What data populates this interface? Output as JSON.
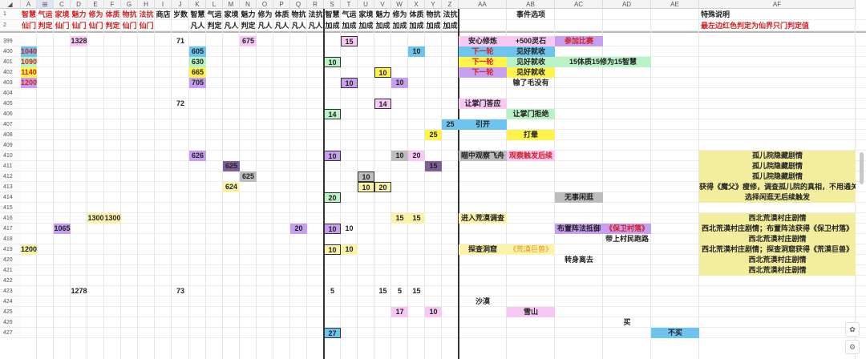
{
  "colors": {
    "pink": "#f7c8f4",
    "red_fill": "#f3a6a6",
    "yellow": "#fff24b",
    "orange": "#ffbf2e",
    "green": "#b9f2c6",
    "blue": "#6cc4ef",
    "purple": "#c79ff0",
    "gray": "#bdbdbd",
    "dark_purple": "#7f5f95",
    "light_yellow": "#fbf3a9",
    "khaki": "#f2ee9e",
    "red_text": "#d32020",
    "orange_text": "#e8901a"
  },
  "ui": {
    "select_all": "◢",
    "cursor_icon": "⊞",
    "copilot_icon": "✿",
    "settings_icon": "⚙"
  },
  "columns": [
    "A",
    "B",
    "C",
    "D",
    "E",
    "F",
    "G",
    "H",
    "I",
    "J",
    "K",
    "L",
    "M",
    "N",
    "O",
    "P",
    "Q",
    "R",
    "S",
    "T",
    "U",
    "V",
    "W",
    "X",
    "Y",
    "Z",
    "AA",
    "AB",
    "AC",
    "AD",
    "AE",
    "AF"
  ],
  "row_numbers": [
    "1",
    "2",
    "399",
    "400",
    "401",
    "402",
    "403",
    "404",
    "405",
    "406",
    "407",
    "408",
    "409",
    "410",
    "411",
    "412",
    "413",
    "414",
    "415",
    "416",
    "417",
    "418",
    "419",
    "420",
    "421",
    "422",
    "423",
    "424",
    "425",
    "426",
    "427"
  ],
  "header": {
    "row1": [
      {
        "col": "A",
        "text": "智慧",
        "style": "red"
      },
      {
        "col": "B",
        "text": "气运",
        "style": "red"
      },
      {
        "col": "C",
        "text": "家境",
        "style": "red"
      },
      {
        "col": "D",
        "text": "魅力",
        "style": "red"
      },
      {
        "col": "E",
        "text": "修为",
        "style": "red"
      },
      {
        "col": "F",
        "text": "体质",
        "style": "red"
      },
      {
        "col": "G",
        "text": "物抗",
        "style": "red"
      },
      {
        "col": "H",
        "text": "法抗",
        "style": "red"
      },
      {
        "col": "I",
        "text": "商店",
        "style": "bold"
      },
      {
        "col": "J",
        "text": "岁数",
        "style": "bold"
      },
      {
        "col": "K",
        "text": "智慧",
        "style": "bold"
      },
      {
        "col": "L",
        "text": "气运",
        "style": "bold"
      },
      {
        "col": "M",
        "text": "家境",
        "style": "bold"
      },
      {
        "col": "N",
        "text": "魅力",
        "style": "bold"
      },
      {
        "col": "O",
        "text": "修为",
        "style": "bold"
      },
      {
        "col": "P",
        "text": "体质",
        "style": "bold"
      },
      {
        "col": "Q",
        "text": "物抗",
        "style": "bold"
      },
      {
        "col": "R",
        "text": "法抗",
        "style": "bold"
      },
      {
        "col": "S",
        "text": "智慧",
        "style": "bold"
      },
      {
        "col": "T",
        "text": "气运",
        "style": "bold"
      },
      {
        "col": "U",
        "text": "家境",
        "style": "bold"
      },
      {
        "col": "V",
        "text": "魅力",
        "style": "bold"
      },
      {
        "col": "W",
        "text": "修为",
        "style": "bold"
      },
      {
        "col": "X",
        "text": "体质",
        "style": "bold"
      },
      {
        "col": "Y",
        "text": "物抗",
        "style": "bold"
      },
      {
        "col": "Z",
        "text": "法抗",
        "style": "bold"
      },
      {
        "col": "AB",
        "text": "事件选项",
        "style": "bold"
      },
      {
        "col": "AF",
        "text": "特殊说明",
        "style": "bold"
      }
    ],
    "row2": [
      {
        "col": "A",
        "text": "仙门",
        "style": "red"
      },
      {
        "col": "B",
        "text": "判定",
        "style": "red"
      },
      {
        "col": "C",
        "text": "仙门",
        "style": "red"
      },
      {
        "col": "D",
        "text": "仙门",
        "style": "red"
      },
      {
        "col": "E",
        "text": "仙门",
        "style": "red"
      },
      {
        "col": "F",
        "text": "判定",
        "style": "red"
      },
      {
        "col": "G",
        "text": "仙门",
        "style": "red"
      },
      {
        "col": "H",
        "text": "仙门",
        "style": "red"
      },
      {
        "col": "K",
        "text": "凡人",
        "style": "bold"
      },
      {
        "col": "L",
        "text": "判定",
        "style": "bold"
      },
      {
        "col": "M",
        "text": "凡人",
        "style": "bold"
      },
      {
        "col": "N",
        "text": "判定",
        "style": "bold"
      },
      {
        "col": "O",
        "text": "凡人",
        "style": "bold"
      },
      {
        "col": "P",
        "text": "凡人",
        "style": "bold"
      },
      {
        "col": "Q",
        "text": "凡人",
        "style": "bold"
      },
      {
        "col": "R",
        "text": "凡人",
        "style": "bold"
      },
      {
        "col": "S",
        "text": "加成",
        "style": "bold"
      },
      {
        "col": "T",
        "text": "加成",
        "style": "bold"
      },
      {
        "col": "U",
        "text": "加成",
        "style": "bold"
      },
      {
        "col": "V",
        "text": "加成",
        "style": "bold"
      },
      {
        "col": "W",
        "text": "加成",
        "style": "bold"
      },
      {
        "col": "X",
        "text": "加成",
        "style": "bold"
      },
      {
        "col": "Y",
        "text": "加成",
        "style": "bold"
      },
      {
        "col": "Z",
        "text": "加成",
        "style": "bold"
      },
      {
        "col": "AF",
        "text": "最左边红色判定为仙界只门判定值",
        "style": "red"
      }
    ]
  },
  "cells": [
    {
      "row": "399",
      "col": "D",
      "text": "1328",
      "fill": "pink",
      "style": "bold"
    },
    {
      "row": "399",
      "col": "J",
      "text": "71",
      "style": "bold"
    },
    {
      "row": "399",
      "col": "N",
      "text": "675",
      "fill": "pink",
      "style": "bold"
    },
    {
      "row": "399",
      "col": "T",
      "text": "15",
      "fill": "pink",
      "style": "bold boxed"
    },
    {
      "row": "399",
      "col": "AA",
      "text": "安心修炼",
      "fill": "pink",
      "style": "bold"
    },
    {
      "row": "399",
      "col": "AB",
      "text": "+500灵石",
      "fill": "pink",
      "style": "bold"
    },
    {
      "row": "399",
      "col": "AC",
      "text": "参加比赛",
      "fill": "purple",
      "style": "red"
    },
    {
      "row": "400",
      "col": "A",
      "text": "1040",
      "fill": "blue",
      "style": "red"
    },
    {
      "row": "400",
      "col": "K",
      "text": "605",
      "fill": "blue",
      "style": "bold"
    },
    {
      "row": "400",
      "col": "X",
      "text": "10",
      "fill": "blue",
      "style": "bold"
    },
    {
      "row": "400",
      "col": "AA",
      "text": "下一轮",
      "fill": "blue",
      "style": "red"
    },
    {
      "row": "400",
      "col": "AB",
      "text": "见好就收",
      "fill": "blue",
      "style": "bold"
    },
    {
      "row": "401",
      "col": "A",
      "text": "1090",
      "fill": "green",
      "style": "red"
    },
    {
      "row": "401",
      "col": "K",
      "text": "630",
      "fill": "green",
      "style": "bold"
    },
    {
      "row": "401",
      "col": "S",
      "text": "10",
      "fill": "green",
      "style": "bold boxed"
    },
    {
      "row": "401",
      "col": "AA",
      "text": "下一轮",
      "fill": "yellow",
      "style": "red"
    },
    {
      "row": "401",
      "col": "AB",
      "text": "见好就收",
      "fill": "green",
      "style": "bold"
    },
    {
      "row": "401",
      "col": "AC",
      "span": "AD",
      "text": "15体质15修为15智慧",
      "fill": "green",
      "style": "bold"
    },
    {
      "row": "402",
      "col": "A",
      "text": "1140",
      "fill": "yellow",
      "style": "red"
    },
    {
      "row": "402",
      "col": "K",
      "text": "665",
      "fill": "yellow",
      "style": "bold"
    },
    {
      "row": "402",
      "col": "V",
      "text": "10",
      "fill": "yellow",
      "style": "bold boxed"
    },
    {
      "row": "402",
      "col": "AA",
      "text": "下一轮",
      "fill": "purple",
      "style": "red"
    },
    {
      "row": "402",
      "col": "AB",
      "text": "见好就收",
      "fill": "yellow",
      "style": "bold"
    },
    {
      "row": "403",
      "col": "A",
      "text": "1200",
      "fill": "purple",
      "style": "red"
    },
    {
      "row": "403",
      "col": "K",
      "text": "705",
      "fill": "purple",
      "style": "bold"
    },
    {
      "row": "403",
      "col": "T",
      "text": "10",
      "fill": "purple",
      "style": "bold boxed"
    },
    {
      "row": "403",
      "col": "W",
      "text": "10",
      "fill": "purple",
      "style": "bold"
    },
    {
      "row": "403",
      "col": "AB",
      "text": "输了毛没有",
      "style": "bold"
    },
    {
      "row": "405",
      "col": "J",
      "text": "72",
      "style": "bold"
    },
    {
      "row": "405",
      "col": "V",
      "text": "14",
      "fill": "pink",
      "style": "bold boxed"
    },
    {
      "row": "405",
      "col": "AA",
      "text": "让掌门答应",
      "fill": "pink",
      "style": "bold"
    },
    {
      "row": "406",
      "col": "S",
      "text": "14",
      "fill": "green",
      "style": "bold boxed"
    },
    {
      "row": "406",
      "col": "AB",
      "text": "让掌门拒绝",
      "fill": "green",
      "style": "bold"
    },
    {
      "row": "407",
      "col": "Z",
      "text": "25",
      "fill": "blue",
      "style": "bold"
    },
    {
      "row": "407",
      "col": "AA",
      "text": "引开",
      "fill": "blue",
      "style": "bold"
    },
    {
      "row": "408",
      "col": "Y",
      "text": "25",
      "fill": "yellow",
      "style": "bold"
    },
    {
      "row": "408",
      "col": "AB",
      "text": "打晕",
      "fill": "yellow",
      "style": "bold"
    },
    {
      "row": "410",
      "col": "K",
      "text": "626",
      "fill": "purple",
      "style": "bold"
    },
    {
      "row": "410",
      "col": "S",
      "text": "10",
      "fill": "purple",
      "style": "bold boxed"
    },
    {
      "row": "410",
      "col": "W",
      "text": "10",
      "fill": "gray",
      "style": "bold"
    },
    {
      "row": "410",
      "col": "X",
      "text": "20",
      "fill": "pink",
      "style": "bold"
    },
    {
      "row": "410",
      "col": "AA",
      "text": "瞄中观察飞舟",
      "fill": "gray",
      "style": "bold"
    },
    {
      "row": "410",
      "col": "AB",
      "text": "观察触发后续",
      "fill": "pink",
      "style": "red"
    },
    {
      "row": "410",
      "col": "AF",
      "text": "孤儿院隐藏剧情",
      "fill": "khaki",
      "style": "bold"
    },
    {
      "row": "411",
      "col": "M",
      "text": "625",
      "fill": "dark_purple",
      "style": "bold"
    },
    {
      "row": "411",
      "col": "Y",
      "text": "15",
      "fill": "dark_purple",
      "style": "bold"
    },
    {
      "row": "411",
      "col": "AF",
      "text": "孤儿院隐藏剧情",
      "fill": "khaki",
      "style": "bold"
    },
    {
      "row": "412",
      "col": "N",
      "text": "625",
      "fill": "gray",
      "style": "bold"
    },
    {
      "row": "412",
      "col": "U",
      "text": "10",
      "fill": "gray",
      "style": "bold boxed"
    },
    {
      "row": "412",
      "col": "AF",
      "text": "孤儿院隐藏剧情",
      "fill": "khaki",
      "style": "bold"
    },
    {
      "row": "413",
      "col": "M",
      "text": "624",
      "fill": "light_yellow",
      "style": "bold"
    },
    {
      "row": "413",
      "col": "U",
      "text": "10",
      "fill": "light_yellow",
      "style": "bold boxed"
    },
    {
      "row": "413",
      "col": "V",
      "text": "20",
      "fill": "light_yellow",
      "style": "bold boxed"
    },
    {
      "row": "413",
      "col": "AF",
      "text": "获得《魔父》瘦修，调查孤儿院的真相，不用通关",
      "fill": "khaki",
      "style": "bold"
    },
    {
      "row": "414",
      "col": "S",
      "text": "20",
      "fill": "green",
      "style": "bold boxed"
    },
    {
      "row": "414",
      "col": "AC",
      "text": "无事闲逛",
      "fill": "gray",
      "style": "bold"
    },
    {
      "row": "414",
      "col": "AF",
      "text": "选择闲逛无后续触发",
      "fill": "khaki",
      "style": "bold"
    },
    {
      "row": "416",
      "col": "E",
      "text": "1300",
      "fill": "light_yellow",
      "style": "bold"
    },
    {
      "row": "416",
      "col": "F",
      "text": "1300",
      "fill": "light_yellow",
      "style": "bold"
    },
    {
      "row": "416",
      "col": "W",
      "text": "15",
      "fill": "light_yellow",
      "style": "bold"
    },
    {
      "row": "416",
      "col": "X",
      "text": "15",
      "fill": "light_yellow",
      "style": "bold"
    },
    {
      "row": "416",
      "col": "AA",
      "text": "进入荒漠调查",
      "fill": "light_yellow",
      "style": "bold"
    },
    {
      "row": "416",
      "col": "AF",
      "text": "西北荒漠村庄剧情",
      "fill": "khaki",
      "style": "bold"
    },
    {
      "row": "417",
      "col": "C",
      "text": "1065",
      "fill": "purple",
      "style": "bold"
    },
    {
      "row": "417",
      "col": "Q",
      "text": "20",
      "fill": "purple",
      "style": "bold"
    },
    {
      "row": "417",
      "col": "S",
      "text": "10",
      "fill": "purple",
      "style": "bold boxed"
    },
    {
      "row": "417",
      "col": "T",
      "text": "10",
      "style": "bold"
    },
    {
      "row": "417",
      "col": "AC",
      "text": "布置阵法抵御",
      "fill": "purple",
      "style": "bold"
    },
    {
      "row": "417",
      "col": "AD",
      "text": "《保卫村落》",
      "fill": "purple",
      "style": "red"
    },
    {
      "row": "417",
      "col": "AF",
      "text": "西北荒漠村庄剧情；布置阵法获得《保卫村落》",
      "fill": "khaki",
      "style": "bold"
    },
    {
      "row": "418",
      "col": "AD",
      "text": "带上村民跑路",
      "style": "bold"
    },
    {
      "row": "418",
      "col": "AF",
      "text": "西北荒漠村庄剧情",
      "fill": "khaki",
      "style": "bold"
    },
    {
      "row": "419",
      "col": "A",
      "text": "1200",
      "fill": "light_yellow",
      "style": "bold"
    },
    {
      "row": "419",
      "col": "S",
      "text": "10",
      "fill": "light_yellow",
      "style": "bold boxed"
    },
    {
      "row": "419",
      "col": "T",
      "text": "10",
      "fill": "light_yellow",
      "style": "bold"
    },
    {
      "row": "419",
      "col": "AA",
      "text": "探查洞窟",
      "fill": "light_yellow",
      "style": "bold"
    },
    {
      "row": "419",
      "col": "AB",
      "text": "《荒漠巨兽》",
      "fill": "light_yellow",
      "style": "orange"
    },
    {
      "row": "419",
      "col": "AF",
      "text": "西北荒漠村庄剧情；探查洞窟获得《荒漠巨兽》",
      "fill": "khaki",
      "style": "bold"
    },
    {
      "row": "420",
      "col": "AC",
      "text": "转身离去",
      "style": "bold"
    },
    {
      "row": "420",
      "col": "AF",
      "text": "西北荒漠村庄剧情",
      "fill": "khaki",
      "style": "bold"
    },
    {
      "row": "421",
      "col": "AF",
      "text": "西北荒漠村庄剧情",
      "fill": "khaki",
      "style": "bold"
    },
    {
      "row": "423",
      "col": "D",
      "text": "1278",
      "style": "bold"
    },
    {
      "row": "423",
      "col": "J",
      "text": "73",
      "style": "bold"
    },
    {
      "row": "423",
      "col": "S",
      "text": "5",
      "style": "bold"
    },
    {
      "row": "423",
      "col": "V",
      "text": "15",
      "style": "bold"
    },
    {
      "row": "423",
      "col": "W",
      "text": "5",
      "style": "bold"
    },
    {
      "row": "423",
      "col": "X",
      "text": "15",
      "style": "bold"
    },
    {
      "row": "424",
      "col": "AA",
      "text": "沙漠",
      "style": "bold"
    },
    {
      "row": "425",
      "col": "W",
      "text": "17",
      "fill": "pink",
      "style": "bold"
    },
    {
      "row": "425",
      "col": "Y",
      "text": "10",
      "fill": "pink",
      "style": "bold"
    },
    {
      "row": "425",
      "col": "AB",
      "text": "雪山",
      "fill": "pink",
      "style": "bold"
    },
    {
      "row": "426",
      "col": "AD",
      "text": "买",
      "style": "bold"
    },
    {
      "row": "427",
      "col": "S",
      "text": "27",
      "fill": "blue",
      "style": "bold boxed"
    },
    {
      "row": "427",
      "col": "AE",
      "text": "不买",
      "fill": "blue",
      "style": "bold"
    }
  ]
}
